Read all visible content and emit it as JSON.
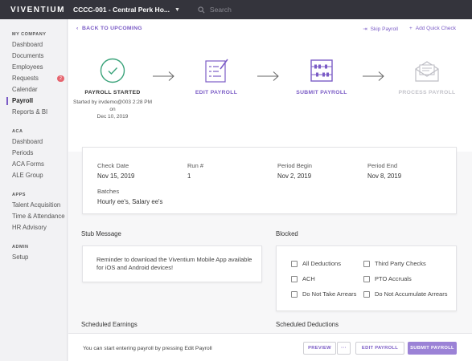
{
  "header": {
    "logo": "VIVENTIUM",
    "company": "CCCC-001 - Central Perk Ho...",
    "search_placeholder": "Search"
  },
  "sidebar": {
    "sections": [
      {
        "title": "MY COMPANY",
        "items": [
          {
            "label": "Dashboard"
          },
          {
            "label": "Documents"
          },
          {
            "label": "Employees"
          },
          {
            "label": "Requests",
            "badge": "2"
          },
          {
            "label": "Calendar"
          },
          {
            "label": "Payroll",
            "active": true
          },
          {
            "label": "Reports & BI"
          }
        ]
      },
      {
        "title": "ACA",
        "items": [
          {
            "label": "Dashboard"
          },
          {
            "label": "Periods"
          },
          {
            "label": "ACA Forms"
          },
          {
            "label": "ALE Group"
          }
        ]
      },
      {
        "title": "APPS",
        "items": [
          {
            "label": "Talent Acquisition"
          },
          {
            "label": "Time & Attendance"
          },
          {
            "label": "HR Advisory"
          }
        ]
      },
      {
        "title": "ADMIN",
        "items": [
          {
            "label": "Setup"
          }
        ]
      }
    ]
  },
  "nav": {
    "back": "BACK TO UPCOMING",
    "skip": "Skip Payroll",
    "add_check": "Add Quick Check"
  },
  "steps": {
    "started": "PAYROLL STARTED",
    "started_info_1": "Started by irvdemo@003 2:28 PM on",
    "started_info_2": "Dec 10, 2019",
    "edit": "EDIT PAYROLL",
    "submit": "SUBMIT PAYROLL",
    "process": "PROCESS PAYROLL"
  },
  "details": {
    "check_date_label": "Check Date",
    "check_date": "Nov 15, 2019",
    "run_label": "Run #",
    "run": "1",
    "period_begin_label": "Period Begin",
    "period_begin": "Nov 2, 2019",
    "period_end_label": "Period End",
    "period_end": "Nov 8, 2019",
    "batches_label": "Batches",
    "batches": "Hourly ee's, Salary ee's"
  },
  "stub": {
    "title": "Stub Message",
    "text": "Reminder to download the Viventium Mobile App available for iOS and Android devices!"
  },
  "blocked": {
    "title": "Blocked",
    "items": [
      "All Deductions",
      "Third Party Checks",
      "ACH",
      "PTO Accruals",
      "Do Not Take Arrears",
      "Do Not Accumulate Arrears"
    ]
  },
  "lower": {
    "earnings": "Scheduled Earnings",
    "deductions": "Scheduled Deductions"
  },
  "footer": {
    "message": "You can start entering payroll by pressing Edit Payroll",
    "preview": "PREVIEW",
    "more": "···",
    "edit": "EDIT PAYROLL",
    "submit": "SUBMIT PAYROLL"
  },
  "colors": {
    "accent": "#7b5cc6",
    "started_green": "#3aa37a",
    "topbar": "#34343c"
  }
}
